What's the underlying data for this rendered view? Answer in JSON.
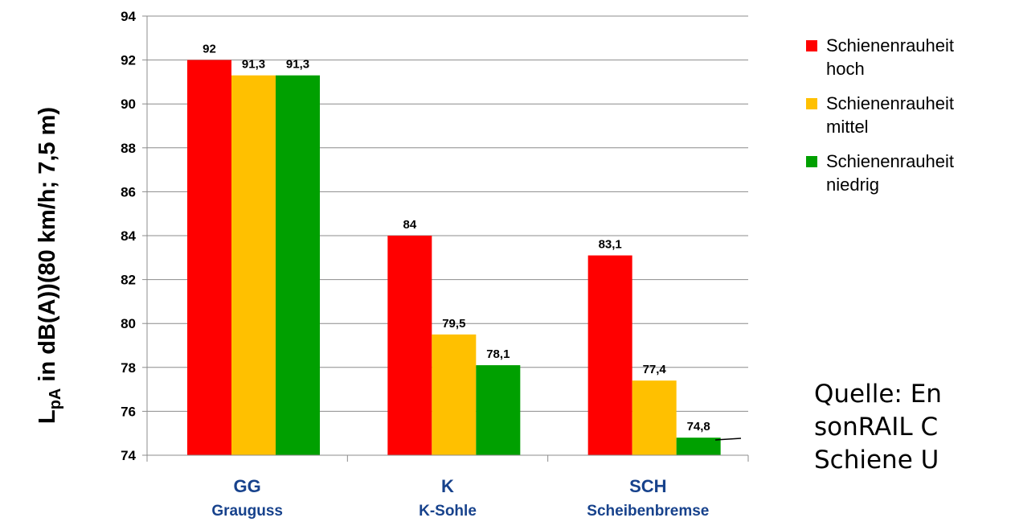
{
  "chart_data": {
    "type": "bar",
    "ylabel": {
      "main": "L",
      "sub": "pA",
      "rest": " in dB(A))(80 km/h; 7,5 m)"
    },
    "ylim": [
      74,
      94
    ],
    "yticks": [
      74,
      76,
      78,
      80,
      82,
      84,
      86,
      88,
      90,
      92,
      94
    ],
    "grid": true,
    "legend_position": "top-right",
    "categories": [
      {
        "code": "GG",
        "name": "Grauguss"
      },
      {
        "code": "K",
        "name": "K-Sohle"
      },
      {
        "code": "SCH",
        "name": "Scheibenbremse"
      }
    ],
    "series": [
      {
        "name": "Schienenrauheit hoch",
        "legend_lines": [
          "Schienenrauheit",
          "hoch"
        ],
        "color": "#ff0000",
        "values": [
          92,
          84,
          83.1
        ],
        "labels": [
          "92",
          "84",
          "83,1"
        ]
      },
      {
        "name": "Schienenrauheit mittel",
        "legend_lines": [
          "Schienenrauheit",
          "mittel"
        ],
        "color": "#ffc000",
        "values": [
          91.3,
          79.5,
          77.4
        ],
        "labels": [
          "91,3",
          "79,5",
          "77,4"
        ]
      },
      {
        "name": "Schienenrauheit niedrig",
        "legend_lines": [
          "Schienenrauheit",
          "niedrig"
        ],
        "color": "#00a000",
        "values": [
          91.3,
          78.1,
          74.8
        ],
        "labels": [
          "91,3",
          "78,1",
          "74,8"
        ]
      }
    ]
  },
  "source_note": {
    "lines": [
      "Quelle: En",
      "sonRAIL C",
      "Schiene U"
    ]
  }
}
